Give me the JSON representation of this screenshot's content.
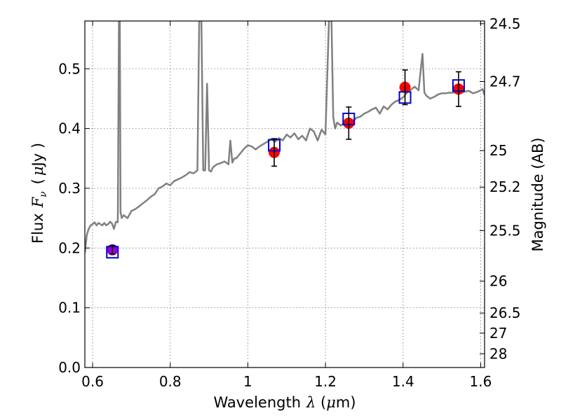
{
  "chart_data": {
    "type": "line",
    "xlabel_prefix": "Wavelength",
    "xlabel_symbol": "λ",
    "xlabel_unit_open": " (",
    "xlabel_unit_mu": "μ",
    "xlabel_unit_rest": "m)",
    "ylabel_prefix": "Flux",
    "ylabel_symbol": "F",
    "ylabel_subscript": "ν",
    "ylabel_unit_open": "(",
    "ylabel_unit_mu": "μ",
    "ylabel_unit_rest": "Jy )",
    "y2label": "Magnitude (AB)",
    "xlim": [
      0.58,
      1.61
    ],
    "ylim": [
      0.0,
      0.58
    ],
    "x_ticks": [
      0.6,
      0.8,
      1.0,
      1.2,
      1.4,
      1.6
    ],
    "x_tick_labels": [
      "0.6",
      "0.8",
      "1",
      "1.2",
      "1.4",
      "1.6"
    ],
    "y_ticks": [
      0.0,
      0.1,
      0.2,
      0.3,
      0.4,
      0.5
    ],
    "y_tick_labels": [
      "0.0",
      "0.1",
      "0.2",
      "0.3",
      "0.4",
      "0.5"
    ],
    "y2_ticks": [
      24.5,
      24.7,
      25,
      25.2,
      25.5,
      26,
      26.5,
      27,
      28
    ],
    "y2_tick_labels": [
      "24.5",
      "24.7",
      "25",
      "25.2",
      "25.5",
      "26",
      "26.5",
      "27",
      "28"
    ],
    "grid": true,
    "colors": {
      "model": "#808080",
      "observed": "#ff0000",
      "model_band": "#0000cc",
      "overlap": "#9900cc",
      "errorbar": "#000000"
    },
    "series": [
      {
        "kind": "model_spectrum",
        "x": [
          0.58,
          0.585,
          0.59,
          0.595,
          0.6,
          0.605,
          0.61,
          0.615,
          0.62,
          0.625,
          0.63,
          0.635,
          0.64,
          0.645,
          0.65,
          0.655,
          0.66,
          0.665,
          0.668,
          0.67,
          0.672,
          0.675,
          0.68,
          0.69,
          0.7,
          0.71,
          0.72,
          0.73,
          0.74,
          0.75,
          0.76,
          0.77,
          0.78,
          0.79,
          0.8,
          0.81,
          0.82,
          0.83,
          0.84,
          0.85,
          0.86,
          0.87,
          0.875,
          0.88,
          0.885,
          0.89,
          0.895,
          0.9,
          0.905,
          0.91,
          0.92,
          0.93,
          0.94,
          0.95,
          0.955,
          0.96,
          0.965,
          0.97,
          0.98,
          0.99,
          1.0,
          1.01,
          1.02,
          1.03,
          1.04,
          1.05,
          1.06,
          1.07,
          1.08,
          1.09,
          1.1,
          1.11,
          1.12,
          1.13,
          1.14,
          1.15,
          1.16,
          1.17,
          1.18,
          1.19,
          1.2,
          1.21,
          1.215,
          1.22,
          1.225,
          1.23,
          1.24,
          1.25,
          1.26,
          1.27,
          1.28,
          1.29,
          1.3,
          1.31,
          1.32,
          1.33,
          1.34,
          1.35,
          1.36,
          1.37,
          1.38,
          1.39,
          1.4,
          1.41,
          1.42,
          1.43,
          1.44,
          1.445,
          1.45,
          1.455,
          1.46,
          1.47,
          1.48,
          1.49,
          1.5,
          1.51,
          1.52,
          1.53,
          1.54,
          1.55,
          1.56,
          1.57,
          1.58,
          1.59,
          1.6,
          1.605,
          1.61
        ],
        "y": [
          0.192,
          0.222,
          0.232,
          0.238,
          0.24,
          0.243,
          0.238,
          0.242,
          0.24,
          0.238,
          0.242,
          0.238,
          0.24,
          0.244,
          0.241,
          0.232,
          0.244,
          0.243,
          0.6,
          0.6,
          0.26,
          0.25,
          0.255,
          0.25,
          0.262,
          0.265,
          0.27,
          0.275,
          0.28,
          0.286,
          0.29,
          0.3,
          0.303,
          0.308,
          0.305,
          0.312,
          0.315,
          0.318,
          0.322,
          0.327,
          0.325,
          0.33,
          0.6,
          0.6,
          0.33,
          0.33,
          0.475,
          0.33,
          0.328,
          0.335,
          0.34,
          0.342,
          0.345,
          0.34,
          0.38,
          0.343,
          0.35,
          0.35,
          0.358,
          0.366,
          0.372,
          0.37,
          0.365,
          0.37,
          0.374,
          0.378,
          0.382,
          0.378,
          0.384,
          0.38,
          0.39,
          0.385,
          0.392,
          0.382,
          0.388,
          0.38,
          0.4,
          0.395,
          0.38,
          0.398,
          0.39,
          0.6,
          0.6,
          0.42,
          0.4,
          0.41,
          0.405,
          0.41,
          0.415,
          0.412,
          0.418,
          0.42,
          0.425,
          0.428,
          0.432,
          0.435,
          0.425,
          0.437,
          0.432,
          0.44,
          0.445,
          0.448,
          0.452,
          0.46,
          0.465,
          0.47,
          0.464,
          0.495,
          0.525,
          0.46,
          0.455,
          0.45,
          0.453,
          0.457,
          0.459,
          0.459,
          0.46,
          0.46,
          0.461,
          0.46,
          0.462,
          0.463,
          0.459,
          0.461,
          0.464,
          0.466,
          0.456
        ]
      },
      {
        "kind": "observed",
        "x": [
          0.651,
          1.068,
          1.26,
          1.405,
          1.543
        ],
        "y": [
          0.197,
          0.36,
          0.409,
          0.469,
          0.466
        ],
        "yerr": [
          0.007,
          0.023,
          0.027,
          0.029,
          0.029
        ]
      },
      {
        "kind": "model_band",
        "x": [
          0.651,
          1.068,
          1.26,
          1.405,
          1.543
        ],
        "y": [
          0.193,
          0.372,
          0.416,
          0.452,
          0.472
        ]
      }
    ]
  }
}
